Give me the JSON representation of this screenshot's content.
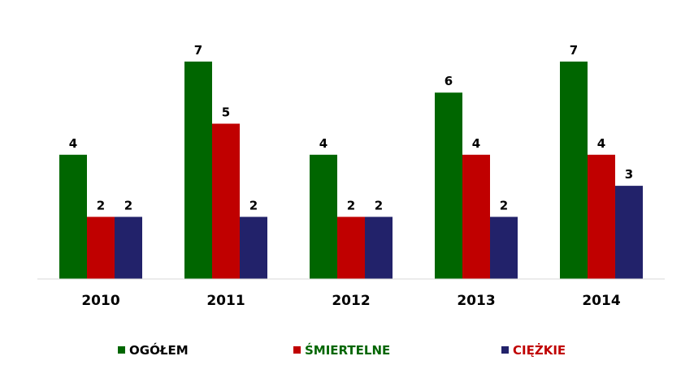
{
  "chart_data": {
    "type": "bar",
    "categories": [
      "2010",
      "2011",
      "2012",
      "2013",
      "2014"
    ],
    "series": [
      {
        "name": "OGÓŁEM",
        "color": "#006600",
        "values": [
          4,
          7,
          4,
          6,
          7
        ]
      },
      {
        "name": "ŚMIERTELNE",
        "color": "#C00000",
        "values": [
          2,
          5,
          2,
          4,
          4
        ]
      },
      {
        "name": "CIĘŻKIE",
        "color": "#22226A",
        "values": [
          2,
          2,
          2,
          2,
          3
        ]
      }
    ],
    "legend_text_colors": [
      "#000000",
      "#006600",
      "#C00000"
    ],
    "ylim": [
      0,
      7
    ],
    "grid": false,
    "legend_position": "bottom",
    "data_labels": true
  }
}
